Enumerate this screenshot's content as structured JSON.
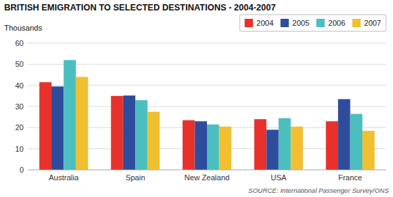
{
  "chart_data": {
    "type": "bar",
    "title": "BRITISH EMIGRATION TO SELECTED DESTINATIONS - 2004-2007",
    "y_label": "Thousands",
    "annotations": [
      "SOURCE: International Passenger Survey/ONS"
    ],
    "categories": [
      "Australia",
      "Spain",
      "New Zealand",
      "USA",
      "France"
    ],
    "series": [
      {
        "name": "2004",
        "color": "#e8312a",
        "values": [
          41.5,
          35.0,
          23.5,
          24.0,
          23.0
        ]
      },
      {
        "name": "2005",
        "color": "#2d4d9c",
        "values": [
          39.5,
          35.2,
          23.0,
          19.0,
          33.5
        ]
      },
      {
        "name": "2006",
        "color": "#4bbfbf",
        "values": [
          52.0,
          33.0,
          21.5,
          24.5,
          26.5
        ]
      },
      {
        "name": "2007",
        "color": "#f0c030",
        "values": [
          44.0,
          27.5,
          20.5,
          20.5,
          18.5
        ]
      }
    ],
    "ylim": [
      0,
      60
    ],
    "yticks": [
      0,
      10,
      20,
      30,
      40,
      50,
      60
    ],
    "grid": true,
    "legend": "upper right"
  }
}
